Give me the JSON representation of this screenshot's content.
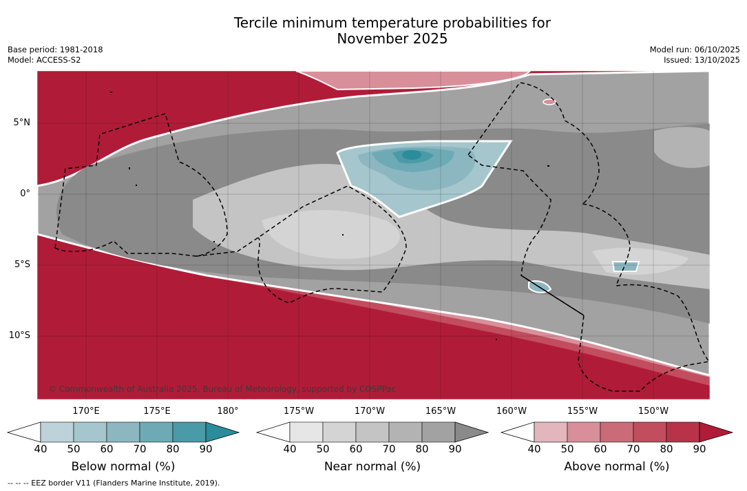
{
  "header": {
    "title_line1": "Tercile minimum temperature probabilities for",
    "title_line2": "November 2025",
    "base_period": "Base period: 1981-2018",
    "model": "Model: ACCESS-S2",
    "model_run": "Model run: 06/10/2025",
    "issued": "Issued: 13/10/2025"
  },
  "map": {
    "lat_labels": [
      "5°N",
      "0°",
      "5°S",
      "10°S"
    ],
    "lon_labels": [
      "170°E",
      "175°E",
      "180°",
      "175°W",
      "170°W",
      "165°W",
      "160°W",
      "155°W",
      "150°W"
    ],
    "copyright": "© Commonwealth of Australia 2025, Bureau of Meteorology, supported by COSPPac"
  },
  "legend": {
    "tick_values": [
      "40",
      "50",
      "60",
      "70",
      "80",
      "90"
    ],
    "below": {
      "label": "Below normal (%)",
      "colors": [
        "#bdd3d9",
        "#a5c6cd",
        "#8cb7c1",
        "#6daab5",
        "#4a9aa7",
        "#2b8c9b"
      ]
    },
    "near": {
      "label": "Near normal (%)",
      "colors": [
        "#e6e6e6",
        "#d4d4d4",
        "#c4c4c4",
        "#b3b3b3",
        "#a2a2a2",
        "#8a8a8a"
      ]
    },
    "above": {
      "label": "Above normal (%)",
      "colors": [
        "#e3b5bc",
        "#d88f9a",
        "#cc6b78",
        "#c14d5e",
        "#b8334a",
        "#b01c38"
      ]
    }
  },
  "footer": {
    "eez_note": "-- -- -- EEZ border V11 (Flanders Marine Institute, 2019)."
  }
}
